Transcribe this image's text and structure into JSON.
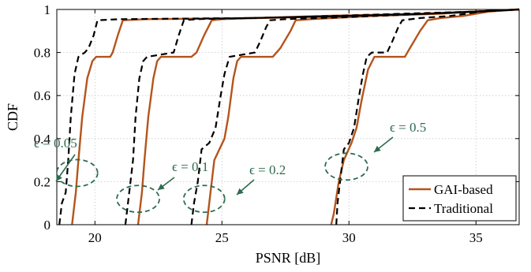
{
  "chart_data": {
    "type": "line",
    "title": "",
    "xlabel": "PSNR [dB]",
    "ylabel": "CDF",
    "xlim": [
      18.5,
      36.7
    ],
    "ylim": [
      0,
      1
    ],
    "xticks": [
      20,
      25,
      30,
      35
    ],
    "xtick_labels": [
      "20",
      "25",
      "30",
      "35"
    ],
    "yticks": [
      0,
      0.2,
      0.4,
      0.6,
      0.8,
      1
    ],
    "ytick_labels": [
      "0",
      "0.2",
      "0.4",
      "0.6",
      "0.8",
      "1"
    ],
    "grid": true,
    "legend_position": "bottom-right",
    "legend": [
      "GAI-based",
      "Traditional"
    ],
    "colors": {
      "gai": "#b5541c",
      "traditional": "#000000",
      "annotation": "#2e6b4f"
    },
    "series": [
      {
        "name": "GAI-based",
        "style": "solid",
        "curves": [
          {
            "epsilon": "ϵ = 0.05",
            "points": [
              [
                19.1,
                0
              ],
              [
                19.15,
                0.05
              ],
              [
                19.25,
                0.15
              ],
              [
                19.35,
                0.3
              ],
              [
                19.5,
                0.5
              ],
              [
                19.7,
                0.68
              ],
              [
                19.9,
                0.76
              ],
              [
                20.05,
                0.78
              ],
              [
                20.6,
                0.78
              ],
              [
                20.7,
                0.8
              ],
              [
                20.9,
                0.88
              ],
              [
                21.1,
                0.95
              ],
              [
                22,
                0.955
              ],
              [
                26.5,
                0.96
              ],
              [
                30,
                0.97
              ],
              [
                33,
                0.98
              ],
              [
                35,
                0.99
              ],
              [
                36.7,
                1
              ]
            ]
          },
          {
            "epsilon": "ϵ = 0.1",
            "points": [
              [
                21.7,
                0
              ],
              [
                21.75,
                0.05
              ],
              [
                21.85,
                0.15
              ],
              [
                21.95,
                0.3
              ],
              [
                22.1,
                0.5
              ],
              [
                22.3,
                0.68
              ],
              [
                22.45,
                0.76
              ],
              [
                22.6,
                0.78
              ],
              [
                23.8,
                0.78
              ],
              [
                24,
                0.8
              ],
              [
                24.3,
                0.88
              ],
              [
                24.6,
                0.95
              ],
              [
                25,
                0.955
              ],
              [
                29,
                0.97
              ],
              [
                33,
                0.98
              ],
              [
                35,
                0.99
              ],
              [
                36.7,
                1
              ]
            ]
          },
          {
            "epsilon": "ϵ = 0.2",
            "points": [
              [
                24.4,
                0
              ],
              [
                24.45,
                0.05
              ],
              [
                24.55,
                0.15
              ],
              [
                24.7,
                0.3
              ],
              [
                25.1,
                0.4
              ],
              [
                25.25,
                0.5
              ],
              [
                25.45,
                0.68
              ],
              [
                25.6,
                0.76
              ],
              [
                25.75,
                0.78
              ],
              [
                27,
                0.78
              ],
              [
                27.3,
                0.82
              ],
              [
                27.7,
                0.9
              ],
              [
                27.9,
                0.95
              ],
              [
                28.5,
                0.955
              ],
              [
                31,
                0.97
              ],
              [
                33.5,
                0.98
              ],
              [
                35,
                0.99
              ],
              [
                36.7,
                1
              ]
            ]
          },
          {
            "epsilon": "ϵ = 0.5",
            "points": [
              [
                29.3,
                0
              ],
              [
                29.4,
                0.05
              ],
              [
                29.6,
                0.2
              ],
              [
                29.8,
                0.3
              ],
              [
                30.1,
                0.38
              ],
              [
                30.3,
                0.45
              ],
              [
                30.5,
                0.58
              ],
              [
                30.75,
                0.72
              ],
              [
                31,
                0.78
              ],
              [
                32.2,
                0.78
              ],
              [
                32.4,
                0.82
              ],
              [
                32.8,
                0.9
              ],
              [
                33.1,
                0.95
              ],
              [
                33.6,
                0.96
              ],
              [
                34.5,
                0.97
              ],
              [
                35.5,
                0.99
              ],
              [
                36.7,
                1
              ]
            ]
          }
        ]
      },
      {
        "name": "Traditional",
        "style": "dashed",
        "curves": [
          {
            "epsilon": "ϵ = 0.05",
            "points": [
              [
                18.6,
                0
              ],
              [
                18.7,
                0.1
              ],
              [
                18.85,
                0.15
              ],
              [
                18.95,
                0.3
              ],
              [
                19.05,
                0.5
              ],
              [
                19.2,
                0.7
              ],
              [
                19.35,
                0.78
              ],
              [
                19.6,
                0.8
              ],
              [
                19.75,
                0.82
              ],
              [
                19.95,
                0.88
              ],
              [
                20.1,
                0.95
              ],
              [
                21,
                0.955
              ],
              [
                26,
                0.96
              ],
              [
                30,
                0.97
              ],
              [
                33,
                0.98
              ],
              [
                35,
                0.99
              ],
              [
                36.7,
                1
              ]
            ]
          },
          {
            "epsilon": "ϵ = 0.1",
            "points": [
              [
                21.2,
                0
              ],
              [
                21.3,
                0.1
              ],
              [
                21.4,
                0.2
              ],
              [
                21.5,
                0.3
              ],
              [
                21.6,
                0.5
              ],
              [
                21.75,
                0.68
              ],
              [
                21.9,
                0.76
              ],
              [
                22.05,
                0.78
              ],
              [
                23.1,
                0.8
              ],
              [
                23.3,
                0.88
              ],
              [
                23.5,
                0.95
              ],
              [
                24,
                0.955
              ],
              [
                28,
                0.965
              ],
              [
                32,
                0.98
              ],
              [
                35,
                0.99
              ],
              [
                36.7,
                1
              ]
            ]
          },
          {
            "epsilon": "ϵ = 0.2",
            "points": [
              [
                23.8,
                0
              ],
              [
                23.9,
                0.1
              ],
              [
                24.05,
                0.2
              ],
              [
                24.2,
                0.35
              ],
              [
                24.5,
                0.38
              ],
              [
                24.75,
                0.45
              ],
              [
                24.95,
                0.6
              ],
              [
                25.1,
                0.7
              ],
              [
                25.3,
                0.78
              ],
              [
                26.3,
                0.8
              ],
              [
                26.5,
                0.85
              ],
              [
                26.75,
                0.92
              ],
              [
                26.9,
                0.95
              ],
              [
                27.5,
                0.955
              ],
              [
                30,
                0.965
              ],
              [
                33,
                0.98
              ],
              [
                35,
                0.99
              ],
              [
                36.7,
                1
              ]
            ]
          },
          {
            "epsilon": "ϵ = 0.5",
            "points": [
              [
                29.5,
                0
              ],
              [
                29.55,
                0.1
              ],
              [
                29.65,
                0.2
              ],
              [
                29.8,
                0.35
              ],
              [
                30,
                0.38
              ],
              [
                30.2,
                0.45
              ],
              [
                30.4,
                0.6
              ],
              [
                30.55,
                0.7
              ],
              [
                30.7,
                0.78
              ],
              [
                30.9,
                0.8
              ],
              [
                31.5,
                0.8
              ],
              [
                31.7,
                0.85
              ],
              [
                31.95,
                0.92
              ],
              [
                32.1,
                0.95
              ],
              [
                32.8,
                0.96
              ],
              [
                34,
                0.97
              ],
              [
                35.2,
                0.99
              ],
              [
                36.7,
                1
              ]
            ]
          }
        ]
      }
    ],
    "annotations": [
      {
        "text": "ϵ = 0.05",
        "target": [
          19.3,
          0.24
        ]
      },
      {
        "text": "ϵ = 0.1",
        "target": [
          21.7,
          0.12
        ]
      },
      {
        "text": "ϵ = 0.2",
        "target": [
          24.3,
          0.12
        ]
      },
      {
        "text": "ϵ = 0.5",
        "target": [
          29.9,
          0.27
        ]
      }
    ]
  }
}
